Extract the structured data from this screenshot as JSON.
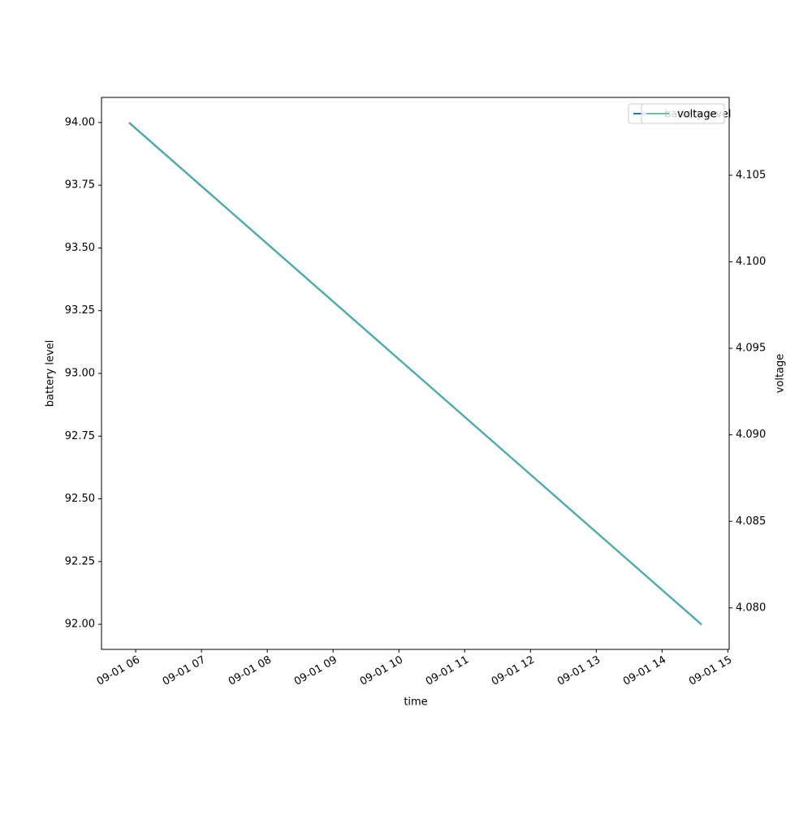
{
  "chart_data": {
    "type": "line",
    "x_label": "time",
    "y_label": "battery level",
    "y2_label": "voltage",
    "x": [
      5.9,
      14.6
    ],
    "xlim": [
      5.48,
      15.02
    ],
    "xticks": [
      {
        "value": 6,
        "label": "09-01 06"
      },
      {
        "value": 7,
        "label": "09-01 07"
      },
      {
        "value": 8,
        "label": "09-01 08"
      },
      {
        "value": 9,
        "label": "09-01 09"
      },
      {
        "value": 10,
        "label": "09-01 10"
      },
      {
        "value": 11,
        "label": "09-01 11"
      },
      {
        "value": 12,
        "label": "09-01 12"
      },
      {
        "value": 13,
        "label": "09-01 13"
      },
      {
        "value": 14,
        "label": "09-01 14"
      },
      {
        "value": 15,
        "label": "09-01 15"
      }
    ],
    "ylim": [
      91.9,
      94.1
    ],
    "yticks": [
      {
        "value": 92,
        "label": "92.00"
      },
      92.25,
      {
        "value": 92.5,
        "label": "92.50"
      },
      92.75,
      {
        "value": 93,
        "label": "93.00"
      },
      93.25,
      {
        "value": 93.5,
        "label": "93.50"
      },
      93.75,
      {
        "value": 94,
        "label": "94.00"
      }
    ],
    "y2lim": [
      4.0776,
      4.1095
    ],
    "y2ticks": [
      {
        "value": 4.08,
        "label": "4.080"
      },
      4.085,
      {
        "value": 4.09,
        "label": "4.090"
      },
      4.095,
      {
        "value": 4.1,
        "label": "4.100"
      },
      4.105
    ],
    "legend": "upper right",
    "series": [
      {
        "name": "battery level",
        "color": "#1f77b4",
        "values": [
          94,
          92
        ]
      },
      {
        "name": "voltage",
        "color": "#66c2a5",
        "values": [
          4.108,
          4.079
        ],
        "axis": "y2"
      }
    ]
  }
}
